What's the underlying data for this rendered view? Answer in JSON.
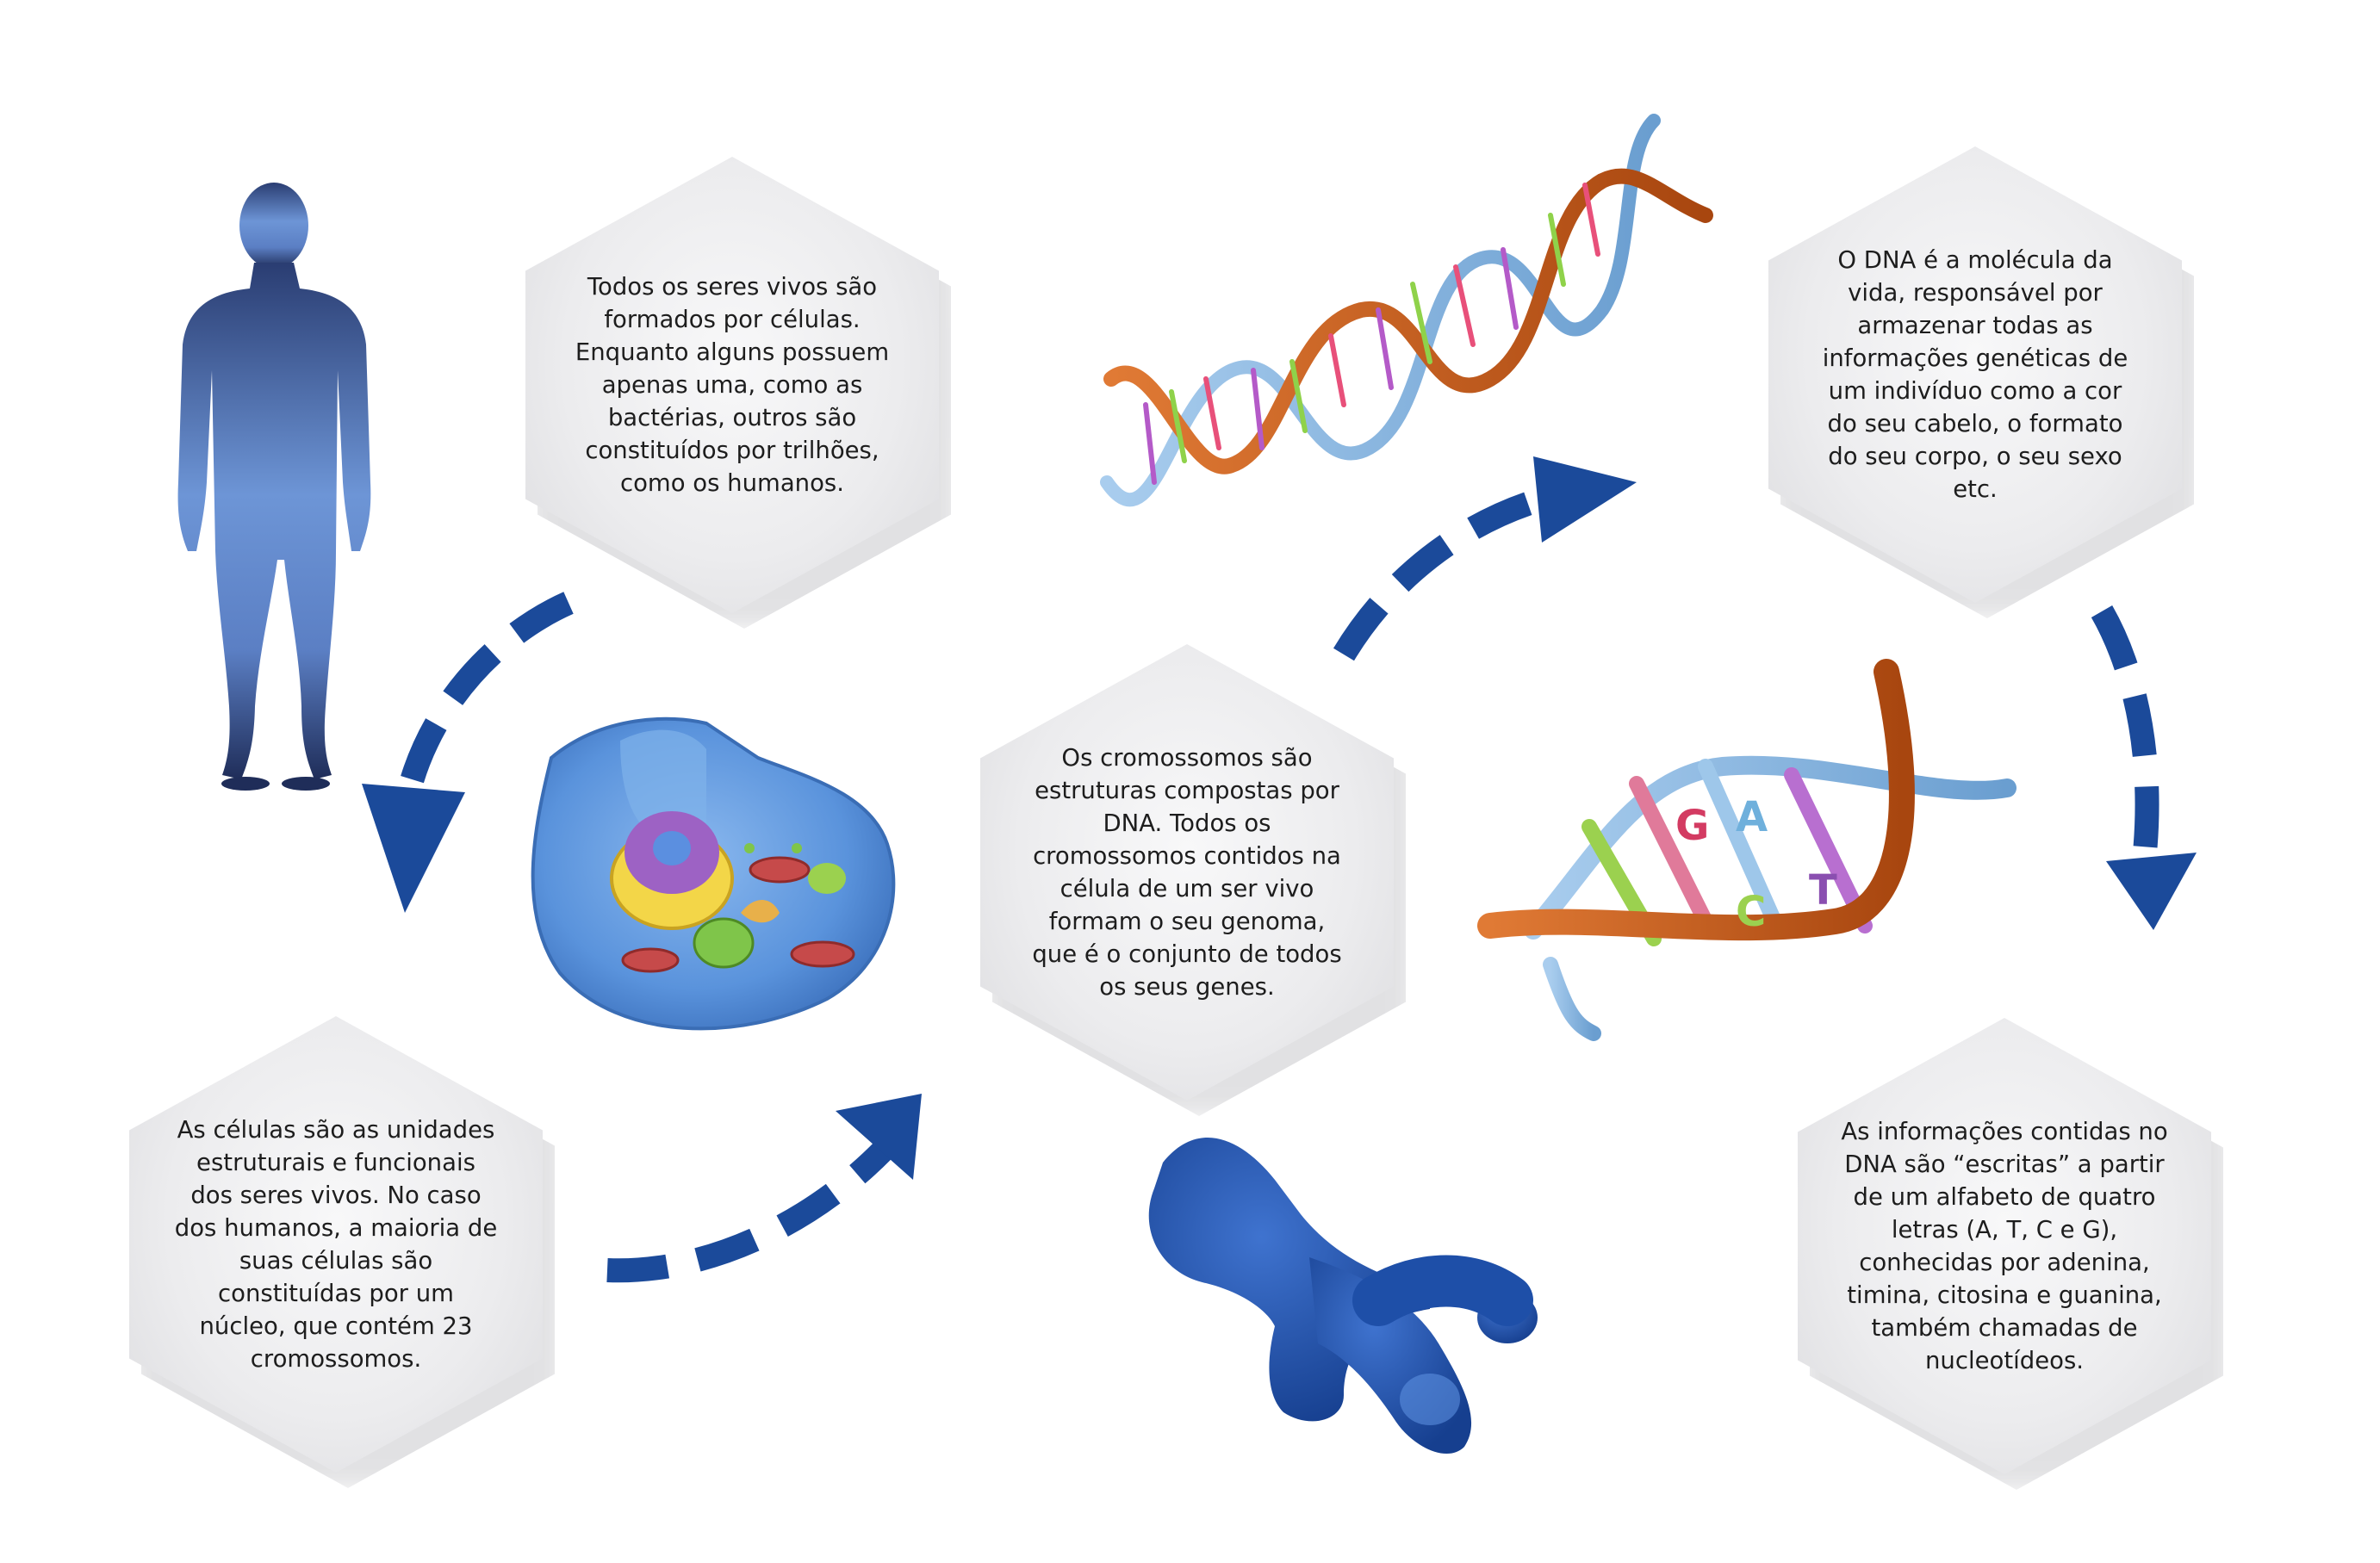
{
  "texts": {
    "cells_all_beings": "Todos os seres vivos são formados por células. Enquanto alguns possuem apenas uma, como as bactérias, outros são constituídos por trilhões, como os humanos.",
    "dna_molecule": "O DNA é a molécula da vida, responsável por armazenar todas as informações genéticas de um indivíduo como a cor do seu cabelo, o formato do seu corpo, o seu sexo etc.",
    "chromosomes": "Os cromossomos são estruturas compostas por DNA. Todos os cromossomos contidos na célula de um ser vivo formam o seu genoma, que é o conjunto de todos os seus genes.",
    "cells_units": "As células são as unidades estruturais e funcionais dos seres vivos. No caso dos humanos, a maioria de suas células são constituídas por um núcleo, que contém 23 cromossomos.",
    "nucleotides": "As informações contidas no DNA são “escritas” a partir de um alfabeto de quatro letras (A, T, C e G), conhecidas por adenina, timina, citosina e guanina, também chamadas de nucleotídeos."
  },
  "bases": {
    "g": "G",
    "a": "A",
    "c": "C",
    "t": "T"
  },
  "colors": {
    "arrow_blue": "#1b4a9a",
    "human_top": "#2a3d72",
    "human_mid": "#6d95d6",
    "dna_strand_orange": "#c45a1c",
    "dna_strand_blue": "#7fb0dc",
    "chromosome_blue": "#1e4fa8",
    "cell_blue": "#5a93dc"
  },
  "icons": {
    "human": "human-silhouette-icon",
    "cell": "animal-cell-icon",
    "dna": "dna-double-helix-icon",
    "dna_closeup": "dna-closeup-icon",
    "chromosome": "chromosome-icon"
  }
}
